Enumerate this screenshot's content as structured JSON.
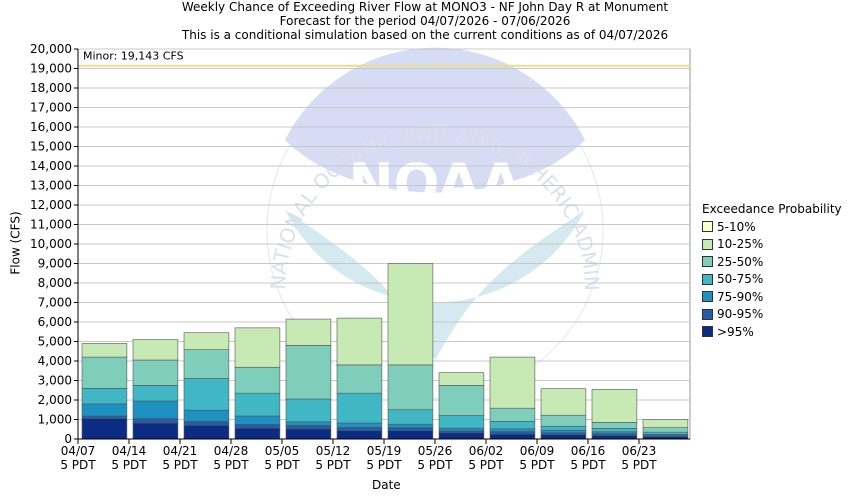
{
  "titles": {
    "line1": "Weekly Chance of Exceeding River Flow at MONO3 - NF John Day R at Monument",
    "line2": "Forecast for the period 04/07/2026 - 07/06/2026",
    "line3": "This is a conditional simulation based on the current conditions as of 04/07/2026"
  },
  "watermark": {
    "logo_text": "NOAA",
    "ring_text": "NATIONAL OCEANIC AND ATMOSPHERIC ADMINISTRATION"
  },
  "threshold": {
    "label": "Minor: 19,143 CFS",
    "value": 19143,
    "color": "#e8e08a"
  },
  "legend": {
    "title": "Exceedance Probability",
    "items": [
      {
        "label": "5-10%",
        "color": "#ffffcc"
      },
      {
        "label": "10-25%",
        "color": "#c7e9b4"
      },
      {
        "label": "25-50%",
        "color": "#7fcdbb"
      },
      {
        "label": "50-75%",
        "color": "#41b6c4"
      },
      {
        "label": "75-90%",
        "color": "#1d91c0"
      },
      {
        "label": "90-95%",
        "color": "#225ea8"
      },
      {
        "label": ">95%",
        "color": "#0c2c84"
      }
    ]
  },
  "chart_data": {
    "type": "bar",
    "stacked": true,
    "xlabel": "Date",
    "ylabel": "Flow (CFS)",
    "ylim": [
      0,
      20000
    ],
    "ytick_step": 1000,
    "grid": true,
    "legend_position": "right",
    "x_tick_labels": [
      [
        "04/07",
        "5 PDT"
      ],
      [
        "04/14",
        "5 PDT"
      ],
      [
        "04/21",
        "5 PDT"
      ],
      [
        "04/28",
        "5 PDT"
      ],
      [
        "05/05",
        "5 PDT"
      ],
      [
        "05/12",
        "5 PDT"
      ],
      [
        "05/19",
        "5 PDT"
      ],
      [
        "05/26",
        "5 PDT"
      ],
      [
        "06/02",
        "5 PDT"
      ],
      [
        "06/09",
        "5 PDT"
      ],
      [
        "06/16",
        "5 PDT"
      ],
      [
        "06/23",
        "5 PDT"
      ]
    ],
    "weeks": [
      {
        "tops": [
          1050,
          1180,
          1800,
          2600,
          4200,
          4900
        ]
      },
      {
        "tops": [
          820,
          1050,
          1950,
          2750,
          4050,
          5100
        ]
      },
      {
        "tops": [
          700,
          900,
          1480,
          3100,
          4580,
          5450
        ]
      },
      {
        "tops": [
          560,
          750,
          1180,
          2350,
          3680,
          5700
        ]
      },
      {
        "tops": [
          520,
          700,
          880,
          2050,
          4800,
          6150
        ]
      },
      {
        "tops": [
          430,
          600,
          820,
          2350,
          3800,
          6200
        ]
      },
      {
        "tops": [
          430,
          580,
          760,
          1500,
          3800,
          9000
        ]
      },
      {
        "tops": [
          320,
          420,
          560,
          1200,
          2750,
          3400
        ]
      },
      {
        "tops": [
          250,
          380,
          520,
          900,
          1580,
          4200
        ]
      },
      {
        "tops": [
          220,
          320,
          450,
          650,
          1220,
          2580
        ]
      },
      {
        "tops": [
          180,
          270,
          370,
          550,
          850,
          2550
        ]
      },
      {
        "tops": [
          120,
          170,
          240,
          350,
          580,
          1000
        ]
      }
    ],
    "bands_note": "tops are cumulative upper boundaries between bands: >95%, 90-95%, 75-90%, 50-75%, 25-50%, 10-25%, 5-10%"
  }
}
